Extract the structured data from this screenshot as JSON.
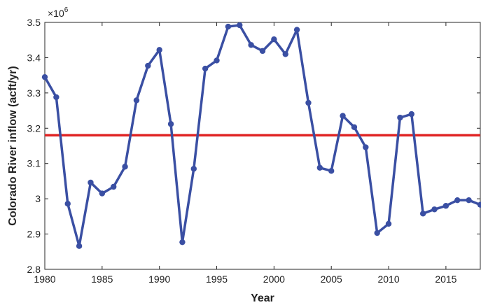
{
  "chart_data": {
    "type": "line",
    "xlabel": "Year",
    "ylabel": "Colorado River inflow (acft/yr)",
    "y_exponent_base": "×10",
    "y_exponent_power": "6",
    "xlim": [
      1980,
      2018
    ],
    "ylim": [
      2.8,
      3.5
    ],
    "x_ticks": [
      1980,
      1985,
      1990,
      1995,
      2000,
      2005,
      2010,
      2015
    ],
    "y_ticks": [
      2.8,
      2.9,
      3,
      3.1,
      3.2,
      3.3,
      3.4,
      3.5
    ],
    "x_tick_labels": [
      "1980",
      "1985",
      "1990",
      "1995",
      "2000",
      "2005",
      "2010",
      "2015"
    ],
    "y_tick_labels": [
      "2.8",
      "2.9",
      "3",
      "3.1",
      "3.2",
      "3.3",
      "3.4",
      "3.5"
    ],
    "grid": false,
    "series": [
      {
        "color": "#3a4fa3",
        "x": [
          1980,
          1981,
          1982,
          1983,
          1984,
          1985,
          1986,
          1987,
          1988,
          1989,
          1990,
          1991,
          1992,
          1993,
          1994,
          1995,
          1996,
          1997,
          1998,
          1999,
          2000,
          2001,
          2002,
          2003,
          2004,
          2005,
          2006,
          2007,
          2008,
          2009,
          2010,
          2011,
          2012,
          2013,
          2014,
          2015,
          2016,
          2017,
          2018
        ],
        "y": [
          3.345,
          3.288,
          2.986,
          2.866,
          3.046,
          3.015,
          3.034,
          3.091,
          3.279,
          3.377,
          3.422,
          3.212,
          2.877,
          3.085,
          3.369,
          3.392,
          3.488,
          3.492,
          3.436,
          3.419,
          3.452,
          3.41,
          3.479,
          3.272,
          3.088,
          3.079,
          3.235,
          3.203,
          3.146,
          2.903,
          2.929,
          3.23,
          3.24,
          2.958,
          2.97,
          2.98,
          2.996,
          2.996,
          2.983
        ]
      }
    ],
    "reference_lines": [
      {
        "y": 3.18,
        "color": "#e02424"
      }
    ]
  }
}
